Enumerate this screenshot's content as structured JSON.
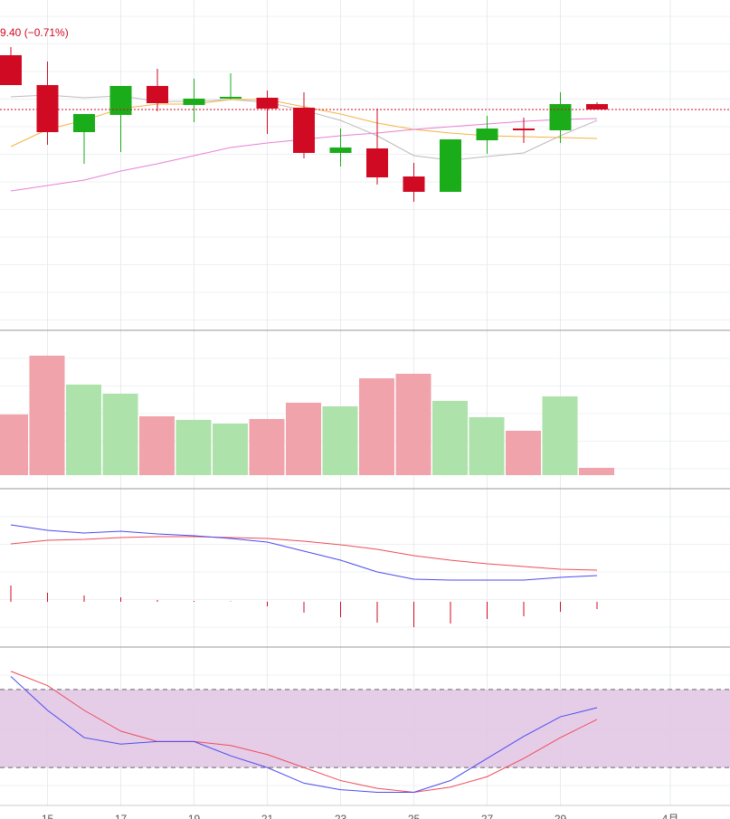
{
  "chart_data": {
    "type": "candlestick",
    "title": "9.40 (−0.71%)",
    "categories": [
      null,
      "15",
      null,
      "17",
      null,
      "19",
      null,
      "21",
      null,
      "23",
      null,
      "25",
      null,
      "27",
      null,
      "29",
      null,
      null,
      "4月"
    ],
    "price": {
      "ylim": [
        0,
        36.5
      ],
      "open": [
        30.4,
        27.1,
        21.9,
        23.8,
        27.0,
        24.9,
        25.6,
        25.7,
        24.6,
        19.6,
        20.1,
        17.0,
        15.3,
        21.0,
        22.3,
        22.1,
        25.0,
        null,
        null
      ],
      "high": [
        31.3,
        29.7,
        23.9,
        27.0,
        28.9,
        27.8,
        28.4,
        26.5,
        26.3,
        22.3,
        24.5,
        18.5,
        21.1,
        23.7,
        23.5,
        26.3,
        25.2,
        null,
        null
      ],
      "low": [
        27.1,
        20.5,
        18.4,
        19.7,
        24.2,
        23.0,
        25.5,
        21.7,
        19.0,
        18.1,
        16.1,
        14.2,
        15.3,
        19.5,
        20.7,
        20.7,
        24.4,
        null,
        null
      ],
      "close": [
        27.1,
        21.9,
        23.9,
        27.0,
        25.1,
        25.6,
        25.8,
        24.5,
        19.6,
        20.2,
        16.9,
        15.3,
        21.1,
        22.3,
        22.1,
        25.0,
        24.4,
        null,
        null
      ],
      "up_color": "#1aad19",
      "down_color": "#d10a24",
      "last": 24.4,
      "ma": [
        {
          "color": "#bbbbbb",
          "values": [
            25.8,
            26.0,
            25.7,
            25.9,
            25.3,
            25.3,
            25.5,
            25.2,
            24.3,
            23.2,
            21.5,
            19.3,
            18.8,
            19.2,
            19.6,
            21.5,
            23.2,
            null,
            null
          ]
        },
        {
          "color": "#f5b342",
          "values": [
            20.3,
            22.2,
            23.2,
            24.5,
            25.0,
            25.0,
            25.5,
            25.5,
            24.7,
            23.9,
            22.9,
            22.2,
            21.8,
            21.5,
            21.4,
            21.3,
            21.2,
            null,
            null
          ]
        },
        {
          "color": "#e87fd6",
          "values": [
            15.4,
            16.0,
            16.6,
            17.6,
            18.4,
            19.3,
            20.2,
            20.7,
            21.1,
            21.5,
            21.8,
            22.2,
            22.5,
            22.8,
            23.1,
            23.3,
            23.4,
            null,
            null
          ]
        }
      ]
    },
    "volume": {
      "ylim": [
        0,
        150
      ],
      "values": [
        67,
        132,
        100,
        90,
        65,
        61,
        57,
        62,
        80,
        76,
        107,
        112,
        82,
        64,
        49,
        87,
        8,
        null,
        null
      ],
      "up_color": "#ade2ab",
      "down_color": "#f0a3ab"
    },
    "macd": {
      "ylim": [
        -50,
        125
      ],
      "dif": {
        "color": "#4b4bf0",
        "values": [
          85,
          79,
          76,
          78,
          75,
          73,
          70,
          66,
          56,
          46,
          33,
          25,
          24,
          24,
          24,
          27,
          29,
          null,
          null
        ]
      },
      "dea": {
        "color": "#ee4d5a",
        "values": [
          64,
          68,
          69,
          71,
          72,
          72,
          71,
          70,
          67,
          63,
          58,
          51,
          46,
          42,
          39,
          36,
          35,
          null,
          null
        ]
      },
      "hist": {
        "color": "#d10a24",
        "values": [
          18,
          10,
          7,
          5,
          2,
          1,
          0.5,
          -5,
          -12,
          -17,
          -23,
          -28,
          -24,
          -19,
          -16,
          -11,
          -8,
          null,
          null
        ]
      }
    },
    "kdj": {
      "ylim": [
        -9.1,
        112.6
      ],
      "bands": [
        20,
        80
      ],
      "band_color": "#e2c8e6",
      "k": {
        "color": "#4b4bf0",
        "values": [
          90,
          64,
          43,
          38,
          40,
          40,
          29,
          20,
          8,
          3,
          1,
          1,
          10,
          27,
          44,
          59,
          66,
          null,
          null
        ]
      },
      "d": {
        "color": "#ee4d5a",
        "values": [
          94,
          83,
          64,
          48,
          40,
          40,
          37,
          30,
          20,
          10,
          4,
          1,
          5,
          13,
          27,
          43,
          57,
          null,
          null
        ]
      }
    }
  }
}
